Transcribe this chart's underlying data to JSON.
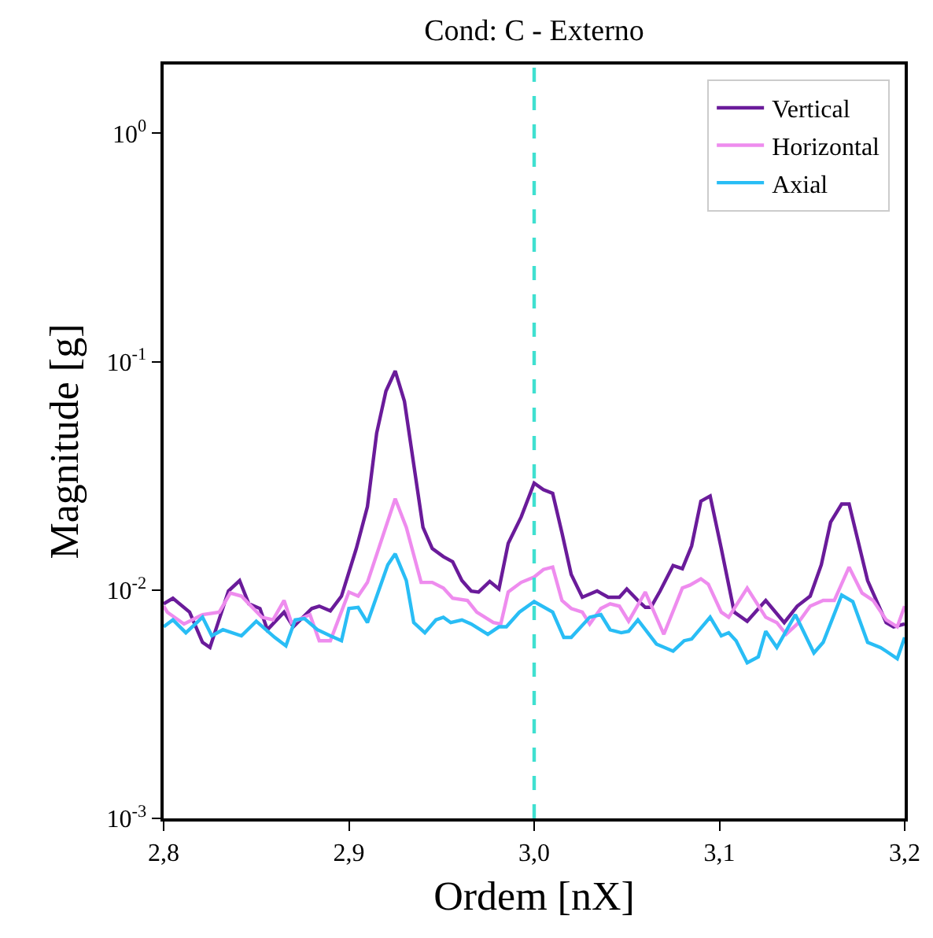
{
  "chart_data": {
    "type": "line",
    "title": "Cond: C - Externo",
    "xlabel": "Ordem [nX]",
    "ylabel": "Magnitude [g]",
    "log": "y",
    "grid": false,
    "legend": "top right",
    "line_style": "solid",
    "xlim": [
      2.8,
      3.2
    ],
    "xticks": [
      {
        "value": 2.8,
        "label": "2,8"
      },
      {
        "value": 2.9,
        "label": "2,9"
      },
      {
        "value": 3.0,
        "label": "3,0"
      },
      {
        "value": 3.1,
        "label": "3,1"
      },
      {
        "value": 3.2,
        "label": "3,2"
      }
    ],
    "ylim": [
      0.001,
      2
    ],
    "yticks": [
      {
        "value": 0.001,
        "label": "10$^{-3}$"
      },
      {
        "value": 0.01,
        "label": "10$^{-2}$"
      },
      {
        "value": 0.1,
        "label": "10$^{-1}$"
      },
      {
        "value": 1,
        "label": "10$^{0}$"
      }
    ],
    "ref_lines": [
      {
        "axis": "x",
        "value": 3.0,
        "color": "#40e0d0",
        "line_style": "dashed"
      }
    ],
    "series": [
      {
        "name": "Vertical",
        "color": "#6a1b9a",
        "x": [
          2.8,
          2.805,
          2.814,
          2.821,
          2.825,
          2.835,
          2.841,
          2.846,
          2.852,
          2.856,
          2.865,
          2.87,
          2.88,
          2.884,
          2.89,
          2.896,
          2.904,
          2.91,
          2.915,
          2.92,
          2.925,
          2.93,
          2.935,
          2.94,
          2.945,
          2.951,
          2.956,
          2.961,
          2.966,
          2.97,
          2.976,
          2.981,
          2.986,
          2.993,
          3.0,
          3.005,
          3.01,
          3.015,
          3.02,
          3.026,
          3.034,
          3.04,
          3.046,
          3.05,
          3.056,
          3.06,
          3.063,
          3.068,
          3.075,
          3.08,
          3.085,
          3.09,
          3.095,
          3.101,
          3.108,
          3.115,
          3.125,
          3.135,
          3.142,
          3.149,
          3.155,
          3.16,
          3.166,
          3.17,
          3.18,
          3.19,
          3.194,
          3.2
        ],
        "values": [
          0.0087,
          0.0092,
          0.008,
          0.0059,
          0.0056,
          0.0099,
          0.011,
          0.0087,
          0.0083,
          0.0067,
          0.008,
          0.0069,
          0.0083,
          0.0085,
          0.0081,
          0.0094,
          0.0152,
          0.0232,
          0.0487,
          0.0743,
          0.091,
          0.067,
          0.0355,
          0.0188,
          0.0152,
          0.014,
          0.0133,
          0.011,
          0.0099,
          0.0098,
          0.0109,
          0.0101,
          0.016,
          0.0209,
          0.0294,
          0.0275,
          0.0265,
          0.0178,
          0.0117,
          0.0093,
          0.0099,
          0.0093,
          0.0093,
          0.0101,
          0.009,
          0.0084,
          0.0084,
          0.0099,
          0.0128,
          0.0124,
          0.0156,
          0.0245,
          0.0258,
          0.0152,
          0.008,
          0.0073,
          0.009,
          0.0072,
          0.0085,
          0.0094,
          0.0129,
          0.0198,
          0.0238,
          0.0238,
          0.011,
          0.0072,
          0.0069,
          0.0071
        ]
      },
      {
        "name": "Horizontal",
        "color": "#ee8cee",
        "x": [
          2.8,
          2.802,
          2.811,
          2.821,
          2.83,
          2.836,
          2.842,
          2.853,
          2.859,
          2.865,
          2.869,
          2.879,
          2.884,
          2.89,
          2.9,
          2.905,
          2.91,
          2.925,
          2.931,
          2.939,
          2.945,
          2.951,
          2.956,
          2.964,
          2.969,
          2.978,
          2.982,
          2.986,
          2.993,
          3.0,
          3.005,
          3.01,
          3.015,
          3.02,
          3.026,
          3.03,
          3.036,
          3.041,
          3.046,
          3.051,
          3.06,
          3.07,
          3.08,
          3.084,
          3.09,
          3.094,
          3.101,
          3.105,
          3.115,
          3.125,
          3.131,
          3.136,
          3.142,
          3.149,
          3.156,
          3.162,
          3.17,
          3.177,
          3.183,
          3.19,
          3.196,
          3.2
        ],
        "values": [
          0.0085,
          0.008,
          0.0071,
          0.0078,
          0.008,
          0.0097,
          0.0094,
          0.0076,
          0.0074,
          0.009,
          0.0072,
          0.0078,
          0.006,
          0.006,
          0.0098,
          0.0094,
          0.0108,
          0.0251,
          0.0188,
          0.0108,
          0.0108,
          0.0102,
          0.0092,
          0.009,
          0.008,
          0.0072,
          0.0071,
          0.0098,
          0.0108,
          0.0114,
          0.0123,
          0.0126,
          0.009,
          0.0083,
          0.008,
          0.0071,
          0.0083,
          0.0087,
          0.0085,
          0.0073,
          0.0098,
          0.0064,
          0.0102,
          0.0105,
          0.0112,
          0.0106,
          0.008,
          0.0076,
          0.0102,
          0.0076,
          0.0072,
          0.0064,
          0.0071,
          0.0085,
          0.009,
          0.009,
          0.0126,
          0.0097,
          0.009,
          0.0074,
          0.0069,
          0.0085
        ]
      },
      {
        "name": "Axial",
        "color": "#29bdf5",
        "x": [
          2.8,
          2.805,
          2.812,
          2.821,
          2.826,
          2.832,
          2.842,
          2.85,
          2.86,
          2.866,
          2.871,
          2.876,
          2.883,
          2.89,
          2.896,
          2.9,
          2.905,
          2.91,
          2.921,
          2.925,
          2.931,
          2.935,
          2.941,
          2.947,
          2.951,
          2.955,
          2.961,
          2.966,
          2.975,
          2.981,
          2.985,
          2.992,
          3.0,
          3.01,
          3.016,
          3.02,
          3.03,
          3.036,
          3.041,
          3.047,
          3.051,
          3.056,
          3.066,
          3.075,
          3.081,
          3.085,
          3.095,
          3.101,
          3.105,
          3.109,
          3.115,
          3.121,
          3.125,
          3.131,
          3.141,
          3.151,
          3.156,
          3.166,
          3.172,
          3.18,
          3.187,
          3.19,
          3.196,
          3.2
        ],
        "values": [
          0.0069,
          0.0074,
          0.0065,
          0.0076,
          0.0063,
          0.0067,
          0.0063,
          0.0073,
          0.0062,
          0.0057,
          0.0074,
          0.0075,
          0.0067,
          0.0063,
          0.006,
          0.0083,
          0.0084,
          0.0072,
          0.0129,
          0.0144,
          0.011,
          0.0072,
          0.0065,
          0.0074,
          0.0076,
          0.0072,
          0.0074,
          0.0071,
          0.0064,
          0.0069,
          0.0069,
          0.008,
          0.0089,
          0.008,
          0.0062,
          0.0062,
          0.0076,
          0.0078,
          0.0067,
          0.0065,
          0.0066,
          0.0074,
          0.0058,
          0.0054,
          0.006,
          0.0061,
          0.0076,
          0.0063,
          0.0065,
          0.006,
          0.0048,
          0.0051,
          0.0066,
          0.0056,
          0.0078,
          0.0053,
          0.0059,
          0.0095,
          0.0089,
          0.0059,
          0.0056,
          0.0054,
          0.005,
          0.0062
        ]
      }
    ]
  }
}
